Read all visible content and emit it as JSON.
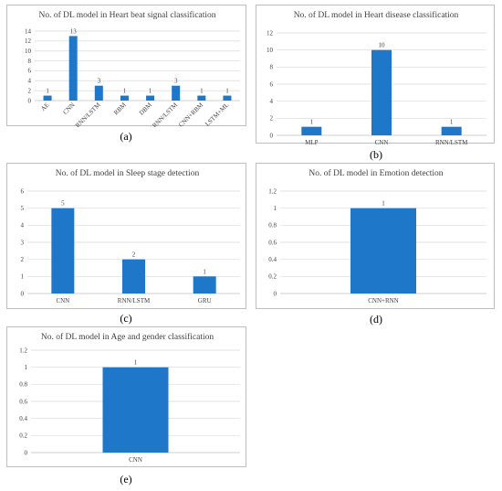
{
  "colors": {
    "bar": "#1F77C9"
  },
  "chart_data": [
    {
      "id": "a",
      "type": "bar",
      "title": "No. of DL model in Heart beat signal classification",
      "categories": [
        "AE",
        "CNN",
        "RNN/LSTM",
        "RBM",
        "DBM",
        "CNN+RNN/LSTM",
        "CNN+RBM",
        "LSTM+ML"
      ],
      "values": [
        1,
        13,
        3,
        1,
        1,
        3,
        1,
        1
      ],
      "yticks": [
        0,
        2,
        4,
        6,
        8,
        10,
        12,
        14
      ],
      "ylim": [
        0,
        14
      ],
      "label": "(a)"
    },
    {
      "id": "b",
      "type": "bar",
      "title": "No. of DL model in Heart disease classification",
      "categories": [
        "MLP",
        "CNN",
        "RNN/LSTM"
      ],
      "values": [
        1,
        10,
        1
      ],
      "yticks": [
        0,
        2,
        4,
        6,
        8,
        10,
        12
      ],
      "ylim": [
        0,
        12
      ],
      "label": "(b)"
    },
    {
      "id": "c",
      "type": "bar",
      "title": "No. of DL model in Sleep stage detection",
      "categories": [
        "CNN",
        "RNN/LSTM",
        "GRU"
      ],
      "values": [
        5,
        2,
        1
      ],
      "yticks": [
        0,
        1,
        2,
        3,
        4,
        5,
        6
      ],
      "ylim": [
        0,
        6
      ],
      "label": "(c)"
    },
    {
      "id": "d",
      "type": "bar",
      "title": "No. of DL model in Emotion detection",
      "categories": [
        "CNN+RNN"
      ],
      "values": [
        1
      ],
      "yticks": [
        "0",
        "0.2",
        "0.4",
        "0.6",
        "0.8",
        "1",
        "1.2"
      ],
      "ylim": [
        0,
        1.2
      ],
      "label": "(d)"
    },
    {
      "id": "e",
      "type": "bar",
      "title": "No. of DL model in Age and gender classification",
      "categories": [
        "CNN"
      ],
      "values": [
        1
      ],
      "yticks": [
        "0",
        "0.2",
        "0.4",
        "0.6",
        "0.8",
        "1",
        "1.2"
      ],
      "ylim": [
        0,
        1.2
      ],
      "label": "(e)"
    }
  ]
}
